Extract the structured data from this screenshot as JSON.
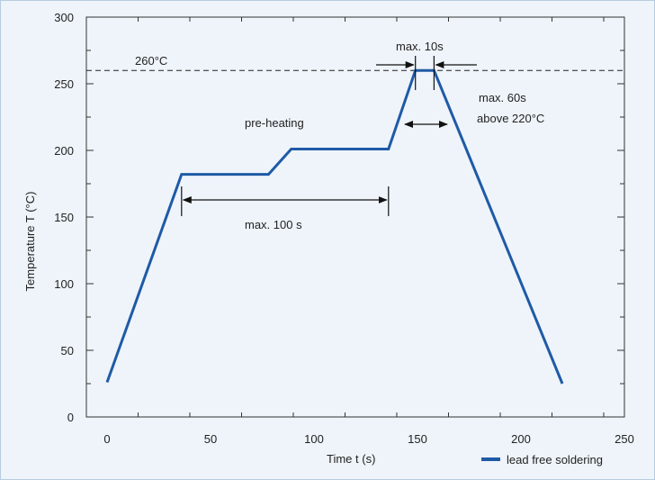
{
  "chart_data": {
    "type": "line",
    "title": "",
    "xlabel": "Time t (s)",
    "ylabel": "Temperature T (°C)",
    "xlim": [
      -10,
      250
    ],
    "ylim": [
      0,
      300
    ],
    "x_ticks": [
      0,
      50,
      100,
      150,
      200,
      250
    ],
    "y_ticks": [
      0,
      50,
      100,
      150,
      200,
      250,
      300
    ],
    "grid": false,
    "legend_position": "bottom-right",
    "series": [
      {
        "name": "lead free soldering",
        "color": "#1f5aa6",
        "x": [
          0,
          36,
          78,
          89,
          136,
          149,
          158,
          220
        ],
        "y": [
          26,
          182,
          182,
          201,
          201,
          260,
          260,
          25
        ]
      }
    ],
    "reference_line": {
      "label": "260°C",
      "y": 260
    },
    "annotations": {
      "preheating": "pre-heating",
      "max100": "max. 100 s",
      "max10": "max. 10s",
      "max60_line1": "max. 60s",
      "max60_line2": "above 220°C"
    }
  }
}
